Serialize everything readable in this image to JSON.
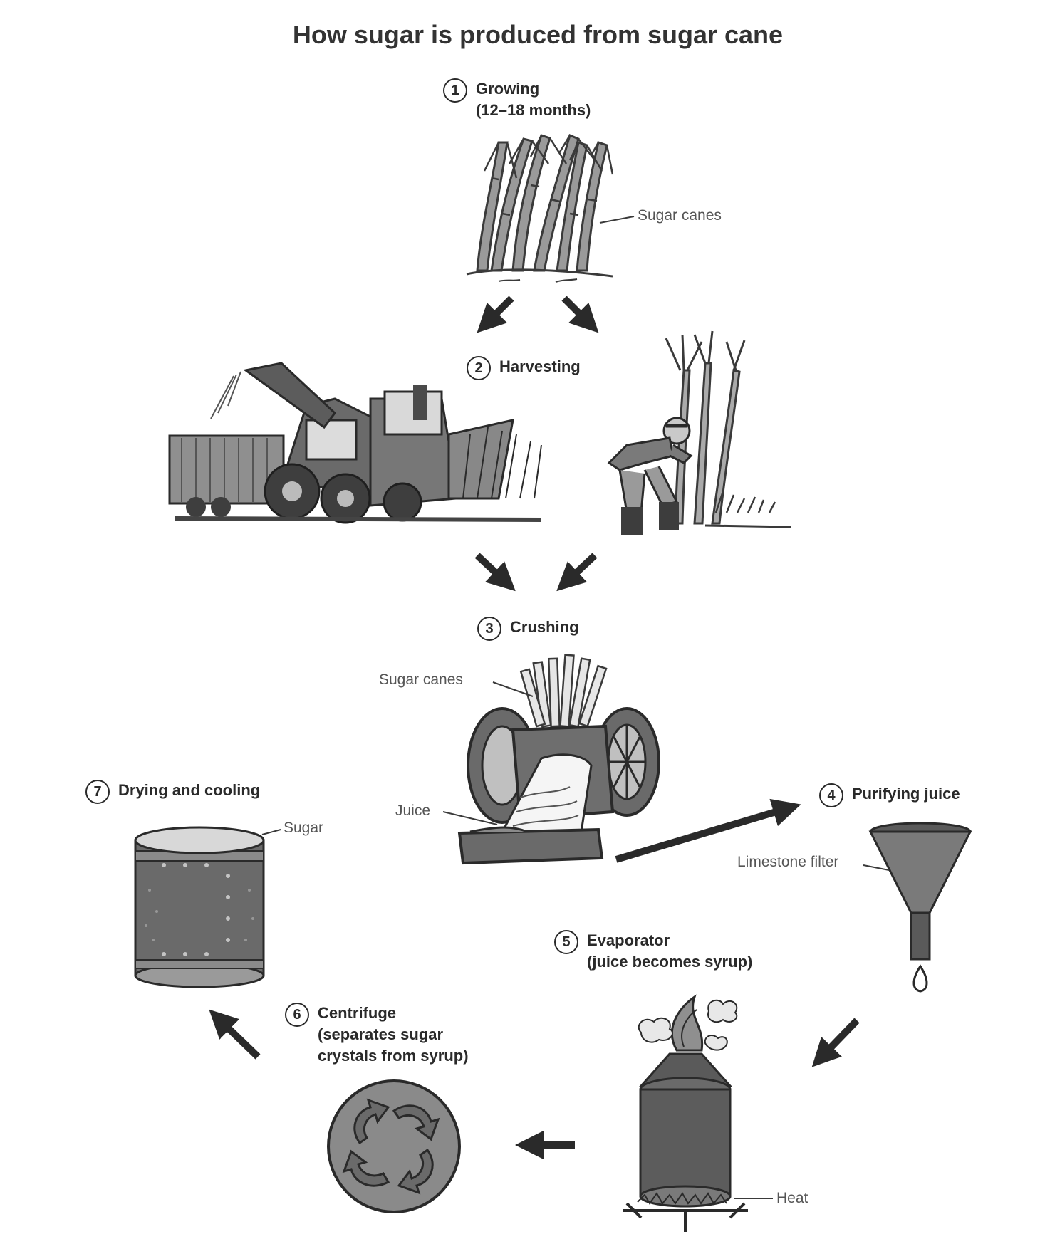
{
  "title": "How sugar is produced from sugar cane",
  "steps": [
    {
      "number": "1",
      "label": "Growing",
      "sublabel": "(12–18 months)"
    },
    {
      "number": "2",
      "label": "Harvesting"
    },
    {
      "number": "3",
      "label": "Crushing"
    },
    {
      "number": "4",
      "label": "Purifying juice"
    },
    {
      "number": "5",
      "label": "Evaporator",
      "sublabel": "(juice becomes syrup)"
    },
    {
      "number": "6",
      "label": "Centrifuge",
      "sublabel": "(separates sugar",
      "sublabel2": "crystals from syrup)"
    },
    {
      "number": "7",
      "label": "Drying and cooling"
    }
  ],
  "callouts": {
    "growing_canes": "Sugar canes",
    "crushing_canes": "Sugar canes",
    "juice": "Juice",
    "limestone": "Limestone filter",
    "heat": "Heat",
    "sugar": "Sugar"
  },
  "colors": {
    "ink": "#2a2a2a",
    "fill_dark": "#5a5a5a",
    "fill_mid": "#8a8a8a",
    "fill_light": "#c8c8c8"
  },
  "icons": [
    "sugar-cane-plant-icon",
    "harvester-icon",
    "farmer-cutting-cane-icon",
    "crusher-mill-icon",
    "funnel-filter-icon",
    "evaporator-tank-icon",
    "centrifuge-icon",
    "drying-drum-icon",
    "arrow-icon"
  ]
}
